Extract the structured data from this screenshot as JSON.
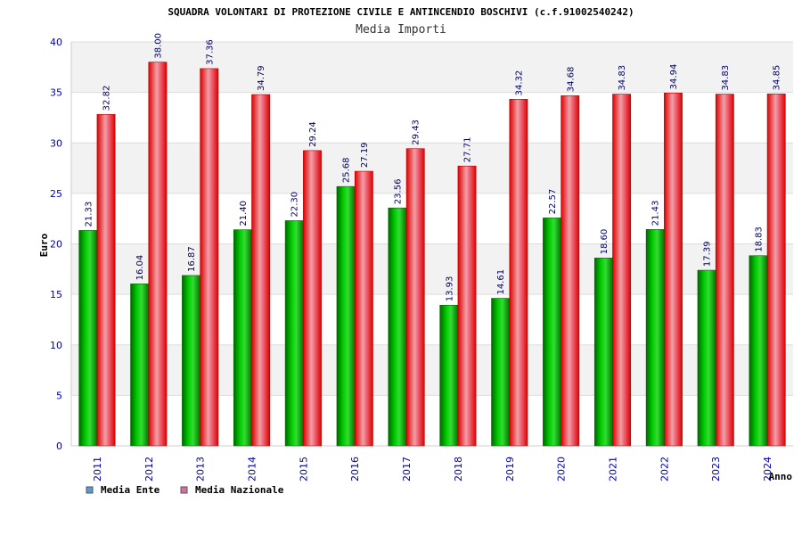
{
  "chart_data": {
    "type": "bar",
    "title": "SQUADRA VOLONTARI DI PROTEZIONE CIVILE E ANTINCENDIO BOSCHIVI (c.f.91002540242)",
    "subtitle": "Media Importi",
    "xlabel": "Anno",
    "ylabel": "Euro",
    "ylim": [
      0,
      40
    ],
    "yticks": [
      "0",
      "5",
      "10",
      "15",
      "20",
      "25",
      "30",
      "35",
      "40"
    ],
    "grid": true,
    "legend_position": "bottom-left",
    "categories": [
      "2011",
      "2012",
      "2013",
      "2014",
      "2015",
      "2016",
      "2017",
      "2018",
      "2019",
      "2020",
      "2021",
      "2022",
      "2023",
      "2024"
    ],
    "series": [
      {
        "name": "Media Ente",
        "color": "#00a000",
        "legend_color": "#5a9bd5",
        "values": [
          21.33,
          16.04,
          16.87,
          21.4,
          22.3,
          25.68,
          23.56,
          13.93,
          14.61,
          22.57,
          18.6,
          21.43,
          17.39,
          18.83
        ],
        "labels": [
          "21.33",
          "16.04",
          "16.87",
          "21.40",
          "22.30",
          "25.68",
          "23.56",
          "13.93",
          "14.61",
          "22.57",
          "18.60",
          "21.43",
          "17.39",
          "18.83"
        ]
      },
      {
        "name": "Media Nazionale",
        "color": "#e00000",
        "legend_color": "#d86fa0",
        "values": [
          32.82,
          38.0,
          37.36,
          34.79,
          29.24,
          27.19,
          29.43,
          27.71,
          34.32,
          34.68,
          34.83,
          34.94,
          34.83,
          34.85
        ],
        "labels": [
          "32.82",
          "38.00",
          "37.36",
          "34.79",
          "29.24",
          "27.19",
          "29.43",
          "27.71",
          "34.32",
          "34.68",
          "34.83",
          "34.94",
          "34.83",
          "34.85"
        ]
      }
    ]
  }
}
